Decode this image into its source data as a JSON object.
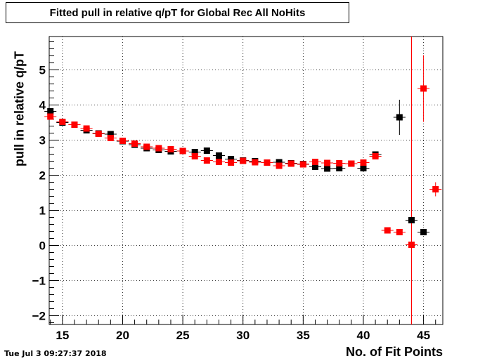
{
  "chart_data": {
    "type": "scatter",
    "title": "Fitted pull in relative q/pT for Global Rec All NoHits",
    "xlabel": "No. of Fit Points",
    "ylabel": "pull in relative q/pT",
    "timestamp": "Tue Jul  3 09:27:37 2018",
    "xlim": [
      13.9,
      46.6
    ],
    "ylim": [
      -2.25,
      5.95
    ],
    "xticks": [
      15,
      20,
      25,
      30,
      35,
      40,
      45
    ],
    "yticks": [
      -2,
      -1,
      0,
      1,
      2,
      3,
      4,
      5
    ],
    "grid": true,
    "marker_line_x": 44,
    "series": [
      {
        "color": "#000000",
        "points": [
          {
            "x": 14,
            "y": 3.82,
            "err": 0.05
          },
          {
            "x": 15,
            "y": 3.5,
            "err": 0.04
          },
          {
            "x": 16,
            "y": 3.44,
            "err": 0.04
          },
          {
            "x": 17,
            "y": 3.28,
            "err": 0.04
          },
          {
            "x": 18,
            "y": 3.19,
            "err": 0.04
          },
          {
            "x": 19,
            "y": 3.17,
            "err": 0.04
          },
          {
            "x": 20,
            "y": 2.97,
            "err": 0.04
          },
          {
            "x": 21,
            "y": 2.87,
            "err": 0.04
          },
          {
            "x": 22,
            "y": 2.77,
            "err": 0.04
          },
          {
            "x": 23,
            "y": 2.72,
            "err": 0.04
          },
          {
            "x": 24,
            "y": 2.68,
            "err": 0.04
          },
          {
            "x": 25,
            "y": 2.69,
            "err": 0.04
          },
          {
            "x": 26,
            "y": 2.66,
            "err": 0.04
          },
          {
            "x": 27,
            "y": 2.7,
            "err": 0.05
          },
          {
            "x": 28,
            "y": 2.56,
            "err": 0.05
          },
          {
            "x": 29,
            "y": 2.46,
            "err": 0.05
          },
          {
            "x": 30,
            "y": 2.42,
            "err": 0.05
          },
          {
            "x": 31,
            "y": 2.4,
            "err": 0.05
          },
          {
            "x": 32,
            "y": 2.36,
            "err": 0.05
          },
          {
            "x": 33,
            "y": 2.37,
            "err": 0.05
          },
          {
            "x": 34,
            "y": 2.34,
            "err": 0.05
          },
          {
            "x": 35,
            "y": 2.32,
            "err": 0.05
          },
          {
            "x": 36,
            "y": 2.24,
            "err": 0.06
          },
          {
            "x": 37,
            "y": 2.19,
            "err": 0.06
          },
          {
            "x": 38,
            "y": 2.2,
            "err": 0.06
          },
          {
            "x": 39,
            "y": 2.33,
            "err": 0.06
          },
          {
            "x": 40,
            "y": 2.2,
            "err": 0.07
          },
          {
            "x": 41,
            "y": 2.59,
            "err": 0.08
          },
          {
            "x": 43,
            "y": 3.65,
            "err": 0.5
          },
          {
            "x": 44,
            "y": 0.72,
            "err": 0.08
          },
          {
            "x": 45,
            "y": 0.38,
            "err": 0.06
          }
        ]
      },
      {
        "color": "#ff0000",
        "points": [
          {
            "x": 14,
            "y": 3.67,
            "err": 0.05
          },
          {
            "x": 15,
            "y": 3.52,
            "err": 0.04
          },
          {
            "x": 16,
            "y": 3.44,
            "err": 0.04
          },
          {
            "x": 17,
            "y": 3.33,
            "err": 0.04
          },
          {
            "x": 18,
            "y": 3.18,
            "err": 0.04
          },
          {
            "x": 19,
            "y": 3.06,
            "err": 0.04
          },
          {
            "x": 20,
            "y": 2.98,
            "err": 0.04
          },
          {
            "x": 21,
            "y": 2.9,
            "err": 0.04
          },
          {
            "x": 22,
            "y": 2.81,
            "err": 0.04
          },
          {
            "x": 23,
            "y": 2.77,
            "err": 0.04
          },
          {
            "x": 24,
            "y": 2.74,
            "err": 0.04
          },
          {
            "x": 25,
            "y": 2.69,
            "err": 0.04
          },
          {
            "x": 26,
            "y": 2.54,
            "err": 0.04
          },
          {
            "x": 27,
            "y": 2.42,
            "err": 0.05
          },
          {
            "x": 28,
            "y": 2.38,
            "err": 0.05
          },
          {
            "x": 29,
            "y": 2.36,
            "err": 0.05
          },
          {
            "x": 30,
            "y": 2.41,
            "err": 0.05
          },
          {
            "x": 31,
            "y": 2.37,
            "err": 0.05
          },
          {
            "x": 32,
            "y": 2.36,
            "err": 0.05
          },
          {
            "x": 33,
            "y": 2.27,
            "err": 0.05
          },
          {
            "x": 34,
            "y": 2.33,
            "err": 0.05
          },
          {
            "x": 35,
            "y": 2.31,
            "err": 0.05
          },
          {
            "x": 36,
            "y": 2.38,
            "err": 0.06
          },
          {
            "x": 37,
            "y": 2.35,
            "err": 0.06
          },
          {
            "x": 38,
            "y": 2.34,
            "err": 0.06
          },
          {
            "x": 39,
            "y": 2.33,
            "err": 0.06
          },
          {
            "x": 40,
            "y": 2.36,
            "err": 0.07
          },
          {
            "x": 41,
            "y": 2.54,
            "err": 0.08
          },
          {
            "x": 42,
            "y": 0.43,
            "err": 0.05
          },
          {
            "x": 43,
            "y": 0.38,
            "err": 0.05
          },
          {
            "x": 44,
            "y": 0.02,
            "err": 0.05
          },
          {
            "x": 45,
            "y": 4.47,
            "err": 0.95
          },
          {
            "x": 46,
            "y": 1.6,
            "err": 0.2
          }
        ]
      }
    ]
  }
}
